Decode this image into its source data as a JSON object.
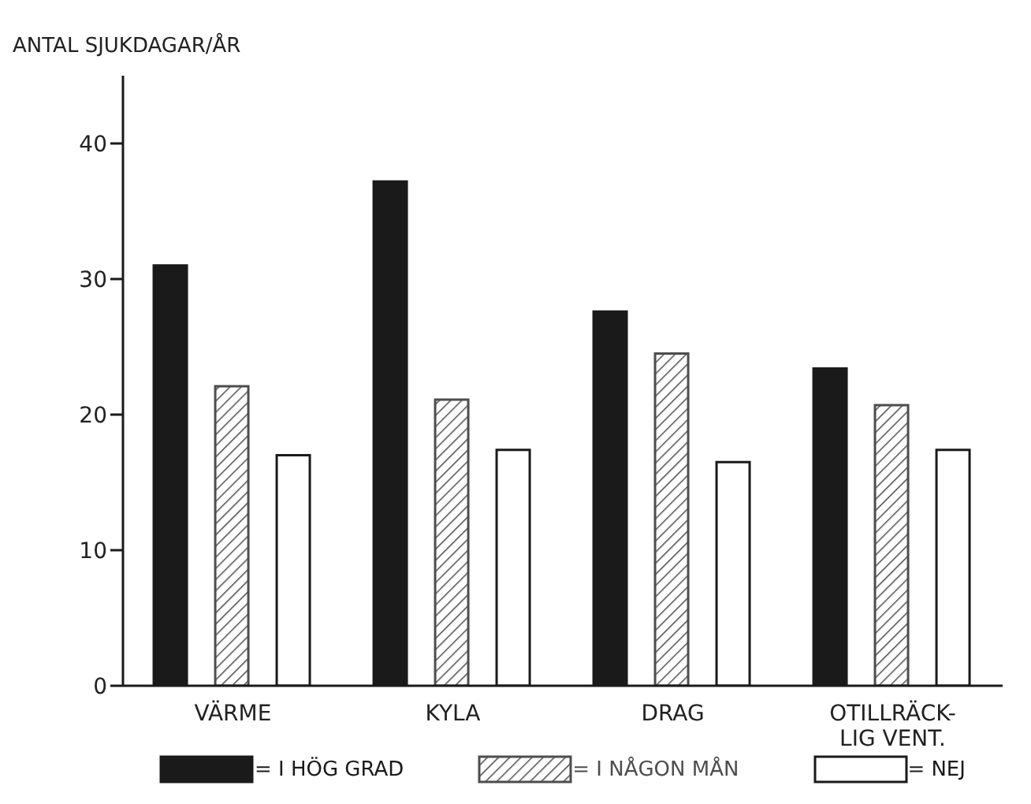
{
  "chart_data": {
    "type": "bar",
    "ylabel": "ANTAL SJUKDAGAR/ÅR",
    "categories": [
      "VÄRME",
      "KYLA",
      "DRAG",
      "OTILLRÄCK-\nLIG VENT."
    ],
    "series": [
      {
        "name": "= I HÖG GRAD",
        "color": "#1a1a1a",
        "values": [
          31,
          37.2,
          27.6,
          23.4
        ]
      },
      {
        "name": "= I NÅGON MÅN",
        "color": "#4d4d4d",
        "values": [
          22.1,
          21.1,
          24.5,
          20.7
        ]
      },
      {
        "name": "= NEJ",
        "color": "#ffffff",
        "values": [
          17,
          17.4,
          16.5,
          17.4
        ]
      }
    ],
    "ylim": [
      0,
      45
    ],
    "yticks": [
      0,
      10,
      20,
      30,
      40
    ],
    "legend": "bottom"
  }
}
